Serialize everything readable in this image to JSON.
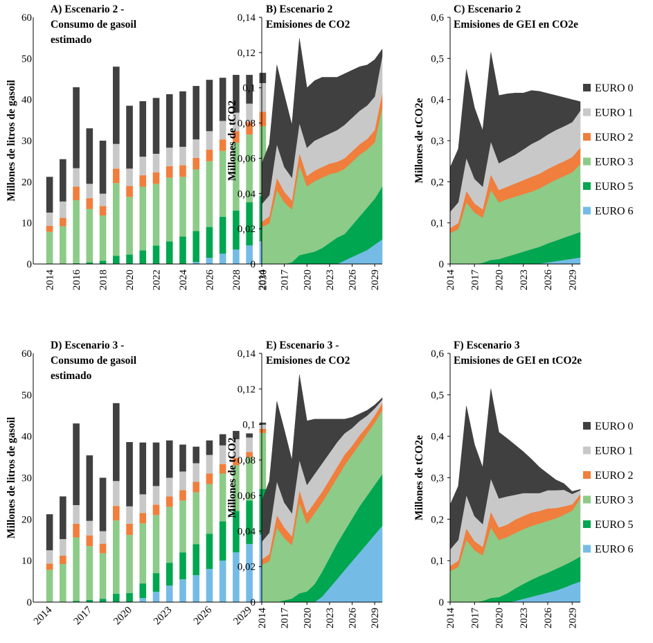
{
  "colors": {
    "EURO 0": "#404040",
    "EURO 1": "#c8c8c8",
    "EURO 2": "#f07e3c",
    "EURO 3": "#8ccb88",
    "EURO 5": "#00a650",
    "EURO 6": "#74bce6"
  },
  "legend": {
    "top": [
      "EURO 0",
      "EURO 1",
      "EURO 2",
      "EURO 3",
      "EURO 5",
      "EURO 6"
    ],
    "bottom": [
      "EURO 0",
      "EURO 1",
      "EURO 2",
      "EURO 3",
      "EURO 5",
      "EURO 6"
    ]
  },
  "chart_data": [
    {
      "id": "A",
      "type": "bar",
      "stacked": true,
      "title": [
        "A) Escenario 2 -",
        "Consumo de gasoil",
        "estimado"
      ],
      "ylabel": "Millones de litros de gasoil",
      "ylim": [
        0,
        60
      ],
      "yticks": [
        0,
        10,
        20,
        30,
        40,
        50,
        60
      ],
      "categories": [
        "2014",
        "2015",
        "2016",
        "2017",
        "2018",
        "2019",
        "2020",
        "2021",
        "2022",
        "2023",
        "2024",
        "2025",
        "2026",
        "2027",
        "2028",
        "2029",
        "2030"
      ],
      "xtick_labels": [
        "2014",
        "2016",
        "2018",
        "2020",
        "2022",
        "2024",
        "2026",
        "2028",
        "2030"
      ],
      "series": [
        {
          "name": "EURO 6",
          "values": [
            0,
            0,
            0,
            0,
            0,
            0,
            0,
            0,
            0,
            0,
            0,
            0.5,
            1.5,
            2.5,
            3.5,
            4.5,
            5.5
          ]
        },
        {
          "name": "EURO 5",
          "values": [
            0,
            0,
            0.2,
            0.4,
            0.8,
            2,
            2.3,
            3.3,
            4.5,
            5.5,
            6.7,
            7.5,
            7.5,
            9,
            9.5,
            10.5,
            11
          ]
        },
        {
          "name": "EURO 3",
          "values": [
            7.8,
            9.2,
            15.3,
            13,
            11,
            17.7,
            14,
            15.5,
            15,
            15.5,
            14.5,
            15,
            16,
            16,
            16.5,
            16.5,
            17
          ]
        },
        {
          "name": "EURO 2",
          "values": [
            1.5,
            2,
            3.3,
            2.6,
            2.3,
            3.5,
            2.7,
            2.8,
            2.8,
            2.8,
            2.8,
            2.8,
            2.8,
            2.8,
            2.8,
            3,
            3.5
          ]
        },
        {
          "name": "EURO 1",
          "values": [
            3.2,
            4,
            4.5,
            3.5,
            3,
            6,
            4.2,
            4.5,
            4.5,
            4.5,
            4.5,
            4.5,
            4.5,
            4.5,
            4.5,
            4.5,
            7
          ]
        },
        {
          "name": "EURO 0",
          "values": [
            8.7,
            10.3,
            19.7,
            13.5,
            12.9,
            18.8,
            15.3,
            13.5,
            13.6,
            13,
            13.5,
            13,
            12.5,
            10.5,
            9.2,
            7,
            2.5
          ]
        }
      ]
    },
    {
      "id": "B",
      "type": "area",
      "stacked": true,
      "title": [
        "B) Escenario 2",
        "Emisiones de CO2"
      ],
      "ylabel": "Millones de tCO2",
      "ylim": [
        0,
        0.14
      ],
      "yticks": [
        0,
        0.02,
        0.04,
        0.06,
        0.08,
        0.1,
        0.12,
        0.14
      ],
      "ytick_labels": [
        "0",
        "0,02",
        "0,04",
        "0,06",
        "0,08",
        "0,1",
        "0,12",
        "0,14"
      ],
      "x": [
        2014,
        2015,
        2016,
        2017,
        2018,
        2019,
        2020,
        2021,
        2022,
        2023,
        2024,
        2025,
        2026,
        2027,
        2028,
        2029,
        2030
      ],
      "xlim": [
        2014,
        2030
      ],
      "xtick_labels": [
        "2014",
        "2017",
        "2020",
        "2023",
        "2026",
        "2029"
      ],
      "series": [
        {
          "name": "EURO 6",
          "values": [
            0,
            0,
            0,
            0,
            0,
            0,
            0,
            0,
            0,
            0,
            0,
            0.002,
            0.004,
            0.006,
            0.008,
            0.011,
            0.014
          ]
        },
        {
          "name": "EURO 5",
          "values": [
            0,
            0,
            0,
            0,
            0.001,
            0.005,
            0.006,
            0.007,
            0.009,
            0.012,
            0.015,
            0.015,
            0.018,
            0.021,
            0.024,
            0.026,
            0.03
          ]
        },
        {
          "name": "EURO 3",
          "values": [
            0.021,
            0.023,
            0.042,
            0.035,
            0.03,
            0.051,
            0.038,
            0.04,
            0.04,
            0.039,
            0.037,
            0.037,
            0.036,
            0.035,
            0.033,
            0.032,
            0.045
          ]
        },
        {
          "name": "EURO 2",
          "values": [
            0.003,
            0.004,
            0.007,
            0.006,
            0.005,
            0.007,
            0.006,
            0.006,
            0.006,
            0.006,
            0.006,
            0.006,
            0.006,
            0.006,
            0.006,
            0.007,
            0.008
          ]
        },
        {
          "name": "EURO 1",
          "values": [
            0.01,
            0.012,
            0.019,
            0.014,
            0.013,
            0.017,
            0.016,
            0.017,
            0.017,
            0.017,
            0.018,
            0.019,
            0.019,
            0.019,
            0.019,
            0.019,
            0.021
          ]
        },
        {
          "name": "EURO 0",
          "values": [
            0.023,
            0.029,
            0.045,
            0.041,
            0.03,
            0.048,
            0.034,
            0.034,
            0.034,
            0.032,
            0.03,
            0.029,
            0.027,
            0.025,
            0.023,
            0.021,
            0.004
          ]
        }
      ]
    },
    {
      "id": "C",
      "type": "area",
      "stacked": true,
      "title": [
        "C) Escenario 2",
        "Emisiones de GEI en CO2e"
      ],
      "ylabel": "Millones de tCO2e",
      "ylim": [
        0,
        0.6
      ],
      "yticks": [
        0,
        0.1,
        0.2,
        0.3,
        0.4,
        0.5,
        0.6
      ],
      "ytick_labels": [
        "0",
        "0,1",
        "0,2",
        "0,3",
        "0,4",
        "0,5",
        "0,6"
      ],
      "x": [
        2014,
        2015,
        2016,
        2017,
        2018,
        2019,
        2020,
        2021,
        2022,
        2023,
        2024,
        2025,
        2026,
        2027,
        2028,
        2029,
        2030
      ],
      "xlim": [
        2014,
        2030
      ],
      "xtick_labels": [
        "2014",
        "2017",
        "2020",
        "2023",
        "2026",
        "2029"
      ],
      "series": [
        {
          "name": "EURO 6",
          "values": [
            0,
            0,
            0,
            0,
            0,
            0,
            0,
            0,
            0,
            0,
            0,
            0.001,
            0.004,
            0.007,
            0.01,
            0.013,
            0.016
          ]
        },
        {
          "name": "EURO 5",
          "values": [
            0,
            0,
            0,
            0,
            0.003,
            0.01,
            0.012,
            0.018,
            0.024,
            0.03,
            0.036,
            0.041,
            0.046,
            0.05,
            0.054,
            0.058,
            0.062
          ]
        },
        {
          "name": "EURO 3",
          "values": [
            0.075,
            0.085,
            0.15,
            0.125,
            0.11,
            0.17,
            0.138,
            0.14,
            0.14,
            0.14,
            0.14,
            0.142,
            0.145,
            0.148,
            0.15,
            0.152,
            0.165
          ]
        },
        {
          "name": "EURO 2",
          "values": [
            0.012,
            0.015,
            0.028,
            0.022,
            0.02,
            0.038,
            0.03,
            0.03,
            0.032,
            0.034,
            0.036,
            0.036,
            0.036,
            0.036,
            0.036,
            0.037,
            0.04
          ]
        },
        {
          "name": "EURO 1",
          "values": [
            0.04,
            0.05,
            0.08,
            0.06,
            0.055,
            0.08,
            0.065,
            0.068,
            0.07,
            0.075,
            0.08,
            0.082,
            0.084,
            0.085,
            0.085,
            0.085,
            0.09
          ]
        },
        {
          "name": "EURO 0",
          "values": [
            0.108,
            0.13,
            0.215,
            0.173,
            0.137,
            0.217,
            0.165,
            0.158,
            0.15,
            0.137,
            0.13,
            0.118,
            0.1,
            0.084,
            0.07,
            0.055,
            0.022
          ]
        }
      ]
    },
    {
      "id": "D",
      "type": "bar",
      "stacked": true,
      "title": [
        "D) Escenario 3 -",
        "Consumo de gasoil",
        "estimado"
      ],
      "ylabel": "Millones de litros de gasoil",
      "ylim": [
        0,
        60
      ],
      "yticks": [
        0,
        10,
        20,
        30,
        40,
        50,
        60
      ],
      "categories": [
        "2014",
        "2015",
        "2016",
        "2017",
        "2018",
        "2019",
        "2020",
        "2021",
        "2022",
        "2023",
        "2024",
        "2025",
        "2026",
        "2027",
        "2028",
        "2029",
        "2030"
      ],
      "xtick_labels": [
        "2014",
        "2017",
        "2020",
        "2023",
        "2026",
        "2029"
      ],
      "series": [
        {
          "name": "EURO 6",
          "values": [
            0,
            0,
            0,
            0,
            0,
            0,
            0,
            1,
            2.5,
            4,
            5.5,
            6.5,
            8,
            10,
            12,
            14,
            16.3
          ]
        },
        {
          "name": "EURO 5",
          "values": [
            0,
            0,
            0.3,
            0.5,
            0.8,
            2,
            2.2,
            3.5,
            4.5,
            5.5,
            6.5,
            7.5,
            8.5,
            9.5,
            10,
            10.5,
            11
          ]
        },
        {
          "name": "EURO 3",
          "values": [
            7.8,
            9.2,
            15.3,
            13,
            11,
            17.7,
            14,
            14.5,
            14,
            13.5,
            12.5,
            12.5,
            12,
            11.5,
            11,
            10.5,
            13.5
          ]
        },
        {
          "name": "EURO 2",
          "values": [
            1.5,
            2,
            3.3,
            2.6,
            2.3,
            3.5,
            2.7,
            2.5,
            2.5,
            2.5,
            2.5,
            2.5,
            2.5,
            2.3,
            1.8,
            1.2,
            1
          ]
        },
        {
          "name": "EURO 1",
          "values": [
            3.2,
            4,
            4.5,
            3.5,
            3,
            6,
            4.2,
            4.5,
            4.5,
            4.5,
            4.5,
            4.5,
            4.5,
            4.5,
            4.5,
            3.5,
            1
          ]
        },
        {
          "name": "EURO 0",
          "values": [
            8.7,
            10.3,
            19.7,
            15.8,
            12.9,
            18.8,
            15.5,
            12.5,
            10.5,
            9,
            6.5,
            4,
            3.5,
            2.7,
            2,
            1,
            0.5
          ]
        }
      ]
    },
    {
      "id": "E",
      "type": "area",
      "stacked": true,
      "title": [
        "E) Escenario 3 -",
        "Emisiones de CO2"
      ],
      "ylabel": "Millones de tCO2",
      "ylim": [
        0,
        0.14
      ],
      "yticks": [
        0,
        0.02,
        0.04,
        0.06,
        0.08,
        0.1,
        0.12,
        0.14
      ],
      "ytick_labels": [
        "0",
        "0,02",
        "0,04",
        "0,06",
        "0,08",
        "0,1",
        "0,12",
        "0,14"
      ],
      "x": [
        2014,
        2015,
        2016,
        2017,
        2018,
        2019,
        2020,
        2021,
        2022,
        2023,
        2024,
        2025,
        2026,
        2027,
        2028,
        2029,
        2030
      ],
      "xlim": [
        2014,
        2030
      ],
      "xtick_labels": [
        "2014",
        "2017",
        "2020",
        "2023",
        "2026",
        "2029"
      ],
      "series": [
        {
          "name": "EURO 6",
          "values": [
            0,
            0,
            0,
            0,
            0,
            0,
            0,
            0,
            0.003,
            0.008,
            0.013,
            0.018,
            0.023,
            0.028,
            0.033,
            0.038,
            0.043
          ]
        },
        {
          "name": "EURO 5",
          "values": [
            0,
            0,
            0,
            0.001,
            0.002,
            0.005,
            0.006,
            0.01,
            0.014,
            0.017,
            0.02,
            0.022,
            0.024,
            0.026,
            0.027,
            0.028,
            0.029
          ]
        },
        {
          "name": "EURO 3",
          "values": [
            0.021,
            0.023,
            0.042,
            0.035,
            0.03,
            0.051,
            0.038,
            0.04,
            0.039,
            0.038,
            0.037,
            0.037,
            0.036,
            0.035,
            0.035,
            0.035,
            0.036
          ]
        },
        {
          "name": "EURO 2",
          "values": [
            0.003,
            0.004,
            0.007,
            0.006,
            0.005,
            0.007,
            0.006,
            0.006,
            0.006,
            0.006,
            0.006,
            0.006,
            0.005,
            0.005,
            0.004,
            0.004,
            0.004
          ]
        },
        {
          "name": "EURO 1",
          "values": [
            0.01,
            0.012,
            0.019,
            0.014,
            0.013,
            0.017,
            0.016,
            0.016,
            0.016,
            0.015,
            0.014,
            0.012,
            0.01,
            0.008,
            0.006,
            0.004,
            0.002
          ]
        },
        {
          "name": "EURO 0",
          "values": [
            0.023,
            0.029,
            0.045,
            0.041,
            0.03,
            0.048,
            0.036,
            0.031,
            0.025,
            0.019,
            0.013,
            0.008,
            0.006,
            0.004,
            0.003,
            0.002,
            0.001
          ]
        }
      ]
    },
    {
      "id": "F",
      "type": "area",
      "stacked": true,
      "title": [
        "F) Escenario 3",
        "Emisiones de GEI en tCO2e"
      ],
      "ylabel": "Millones de tCO2e",
      "ylim": [
        0,
        0.6
      ],
      "yticks": [
        0,
        0.1,
        0.2,
        0.3,
        0.4,
        0.5,
        0.6
      ],
      "ytick_labels": [
        "0",
        "0,1",
        "0,2",
        "0,3",
        "0,4",
        "0,5",
        "0,6"
      ],
      "x": [
        2014,
        2015,
        2016,
        2017,
        2018,
        2019,
        2020,
        2021,
        2022,
        2023,
        2024,
        2025,
        2026,
        2027,
        2028,
        2029,
        2030
      ],
      "xlim": [
        2014,
        2030
      ],
      "xtick_labels": [
        "2014",
        "2017",
        "2020",
        "2023",
        "2026",
        "2029"
      ],
      "series": [
        {
          "name": "EURO 6",
          "values": [
            0,
            0,
            0,
            0,
            0,
            0,
            0,
            0,
            0.003,
            0.008,
            0.013,
            0.018,
            0.023,
            0.028,
            0.035,
            0.043,
            0.05
          ]
        },
        {
          "name": "EURO 5",
          "values": [
            0,
            0,
            0,
            0,
            0.003,
            0.01,
            0.012,
            0.021,
            0.03,
            0.036,
            0.041,
            0.045,
            0.048,
            0.052,
            0.054,
            0.056,
            0.06
          ]
        },
        {
          "name": "EURO 3",
          "values": [
            0.075,
            0.085,
            0.15,
            0.125,
            0.11,
            0.17,
            0.138,
            0.136,
            0.134,
            0.132,
            0.13,
            0.127,
            0.125,
            0.122,
            0.122,
            0.122,
            0.14
          ]
        },
        {
          "name": "EURO 2",
          "values": [
            0.012,
            0.015,
            0.028,
            0.022,
            0.02,
            0.038,
            0.03,
            0.03,
            0.032,
            0.032,
            0.032,
            0.03,
            0.03,
            0.025,
            0.02,
            0.015,
            0.01
          ]
        },
        {
          "name": "EURO 1",
          "values": [
            0.04,
            0.05,
            0.08,
            0.06,
            0.055,
            0.08,
            0.07,
            0.068,
            0.06,
            0.055,
            0.047,
            0.043,
            0.044,
            0.043,
            0.04,
            0.025,
            0.01
          ]
        },
        {
          "name": "EURO 0",
          "values": [
            0.108,
            0.13,
            0.215,
            0.173,
            0.137,
            0.217,
            0.16,
            0.14,
            0.12,
            0.1,
            0.082,
            0.062,
            0.04,
            0.025,
            0.015,
            0.006,
            0.002
          ]
        }
      ]
    }
  ]
}
